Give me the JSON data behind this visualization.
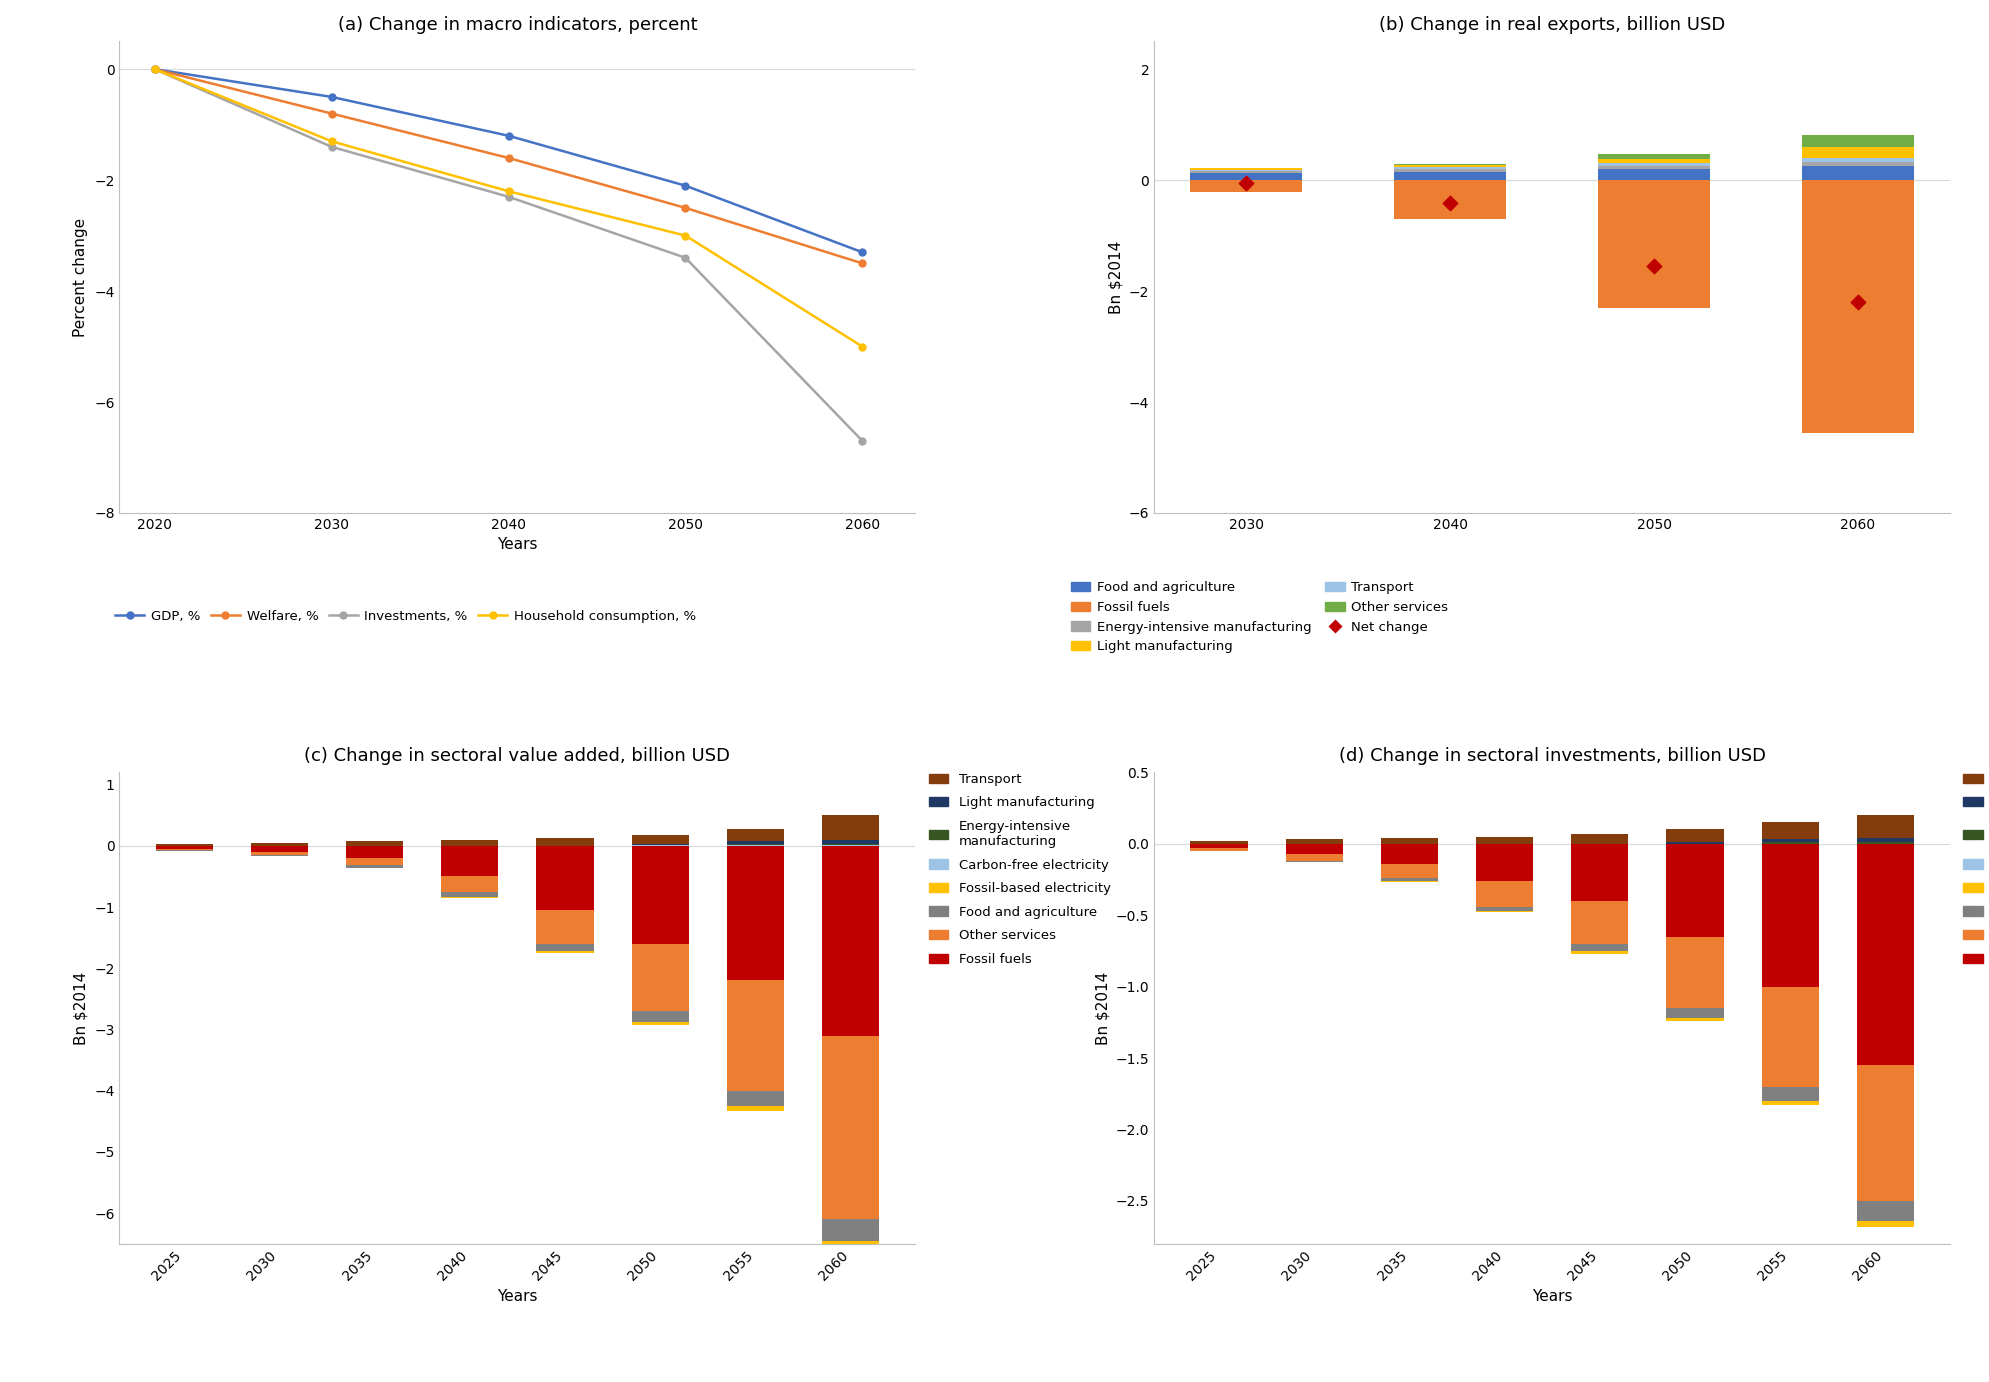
{
  "panel_a": {
    "title": "(a) Change in macro indicators, percent",
    "xlabel": "Years",
    "ylabel": "Percent change",
    "years": [
      2020,
      2030,
      2040,
      2050,
      2060
    ],
    "gdp": [
      0,
      -0.5,
      -1.2,
      -2.1,
      -3.3
    ],
    "welfare": [
      0,
      -0.8,
      -1.6,
      -2.5,
      -3.5
    ],
    "investments": [
      0,
      -1.4,
      -2.3,
      -3.4,
      -6.7
    ],
    "household": [
      0,
      -1.3,
      -2.2,
      -3.0,
      -5.0
    ],
    "gdp_color": "#4472C4",
    "welfare_color": "#ED7D31",
    "investments_color": "#A5A5A5",
    "household_color": "#FFC000",
    "ylim": [
      -8,
      0.5
    ],
    "yticks": [
      0,
      -2,
      -4,
      -6,
      -8
    ]
  },
  "panel_b": {
    "title": "(b) Change in real exports, billion USD",
    "ylabel": "Bn $2014",
    "years": [
      2030,
      2040,
      2050,
      2060
    ],
    "food_agri": [
      0.12,
      0.15,
      0.2,
      0.25
    ],
    "energy_int_mfg": [
      0.04,
      0.05,
      0.06,
      0.08
    ],
    "transport": [
      0.03,
      0.04,
      0.05,
      0.07
    ],
    "light_mfg": [
      0.02,
      0.03,
      0.08,
      0.2
    ],
    "other_services": [
      0.01,
      0.02,
      0.08,
      0.22
    ],
    "fossil_fuels_neg": [
      -0.22,
      -0.7,
      -2.3,
      -4.55
    ],
    "net_change": [
      -0.05,
      -0.42,
      -1.55,
      -2.2
    ],
    "food_agri_color": "#4472C4",
    "energy_int_mfg_color": "#A5A5A5",
    "transport_color": "#9DC3E6",
    "light_mfg_color": "#FFC000",
    "other_services_color": "#70AD47",
    "fossil_fuels_color": "#ED7D31",
    "net_change_color": "#C00000",
    "ylim": [
      -6,
      2.5
    ],
    "yticks": [
      2,
      0,
      -2,
      -4,
      -6
    ]
  },
  "panel_c": {
    "title": "(c) Change in sectoral value added, billion USD",
    "xlabel": "Years",
    "ylabel": "Bn $2014",
    "years": [
      2025,
      2030,
      2035,
      2040,
      2045,
      2050,
      2055,
      2060
    ],
    "transport": [
      0.03,
      0.05,
      0.07,
      0.09,
      0.12,
      0.15,
      0.2,
      0.4
    ],
    "light_mfg": [
      0.0,
      0.0,
      0.0,
      0.0,
      0.0,
      0.02,
      0.05,
      0.07
    ],
    "energy_int_mfg": [
      0.0,
      0.0,
      0.0,
      0.0,
      0.0,
      0.0,
      0.02,
      0.02
    ],
    "carbon_free_elec": [
      0.0,
      0.0,
      0.0,
      0.0,
      0.0,
      0.01,
      0.01,
      0.01
    ],
    "fossil_based_elec": [
      0.0,
      0.0,
      -0.01,
      -0.02,
      -0.03,
      -0.05,
      -0.08,
      -0.1
    ],
    "food_agri": [
      -0.01,
      -0.02,
      -0.04,
      -0.08,
      -0.12,
      -0.18,
      -0.25,
      -0.35
    ],
    "other_services": [
      -0.02,
      -0.05,
      -0.12,
      -0.25,
      -0.55,
      -1.1,
      -1.8,
      -3.0
    ],
    "fossil_fuels": [
      -0.05,
      -0.1,
      -0.2,
      -0.5,
      -1.05,
      -1.6,
      -2.2,
      -3.1
    ],
    "transport_color": "#843C0C",
    "light_mfg_color": "#1F3864",
    "energy_int_mfg_color": "#375623",
    "carbon_free_elec_color": "#9DC3E6",
    "fossil_based_elec_color": "#FFC000",
    "food_agri_color": "#808080",
    "other_services_color": "#ED7D31",
    "fossil_fuels_color": "#C00000",
    "ylim": [
      -6.5,
      1.2
    ],
    "yticks": [
      1,
      0,
      -1,
      -2,
      -3,
      -4,
      -5,
      -6
    ]
  },
  "panel_d": {
    "title": "(d) Change in sectoral investments, billion USD",
    "xlabel": "Years",
    "ylabel": "Bn $2014",
    "years": [
      2025,
      2030,
      2035,
      2040,
      2045,
      2050,
      2055,
      2060
    ],
    "transport": [
      0.02,
      0.03,
      0.04,
      0.05,
      0.07,
      0.09,
      0.12,
      0.16
    ],
    "light_mfg": [
      0.0,
      0.0,
      0.0,
      0.0,
      0.0,
      0.01,
      0.02,
      0.03
    ],
    "energy_int_mfg": [
      0.0,
      0.0,
      0.0,
      0.0,
      0.0,
      0.0,
      0.01,
      0.01
    ],
    "carbon_free_elec": [
      0.0,
      0.0,
      0.0,
      0.0,
      0.0,
      0.0,
      0.0,
      0.0
    ],
    "fossil_based_elec": [
      0.0,
      0.0,
      -0.01,
      -0.01,
      -0.02,
      -0.02,
      -0.03,
      -0.04
    ],
    "food_agri": [
      0.0,
      -0.01,
      -0.02,
      -0.03,
      -0.05,
      -0.07,
      -0.1,
      -0.14
    ],
    "other_services": [
      -0.02,
      -0.05,
      -0.1,
      -0.18,
      -0.3,
      -0.5,
      -0.7,
      -0.95
    ],
    "fossil_fuels": [
      -0.03,
      -0.07,
      -0.14,
      -0.26,
      -0.4,
      -0.65,
      -1.0,
      -1.55
    ],
    "transport_color": "#843C0C",
    "light_mfg_color": "#1F3864",
    "energy_int_mfg_color": "#375623",
    "carbon_free_elec_color": "#9DC3E6",
    "fossil_based_elec_color": "#FFC000",
    "food_agri_color": "#808080",
    "other_services_color": "#ED7D31",
    "fossil_fuels_color": "#C00000",
    "ylim": [
      -2.8,
      0.5
    ],
    "yticks": [
      0.5,
      0.0,
      -0.5,
      -1.0,
      -1.5,
      -2.0,
      -2.5
    ]
  }
}
